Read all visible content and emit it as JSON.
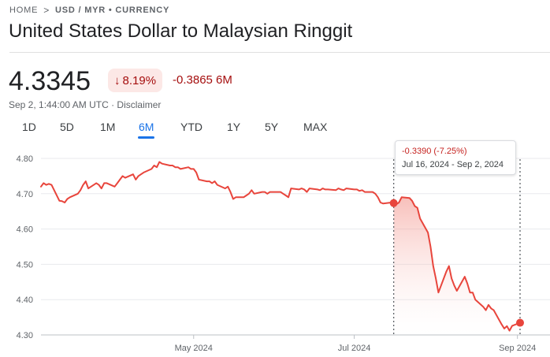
{
  "breadcrumb": {
    "home": "HOME",
    "separator": ">",
    "current": "USD / MYR • CURRENCY"
  },
  "title": "United States Dollar to Malaysian Ringgit",
  "quote": {
    "price": "4.3345",
    "change_arrow": "↓",
    "change_percent": "8.19%",
    "change_absolute": "-0.3865 6M",
    "timestamp": "Sep 2, 1:44:00 AM UTC · Disclaimer"
  },
  "tabs": [
    {
      "label": "1D"
    },
    {
      "label": "5D"
    },
    {
      "label": "1M"
    },
    {
      "label": "6M",
      "active": true
    },
    {
      "label": "YTD"
    },
    {
      "label": "1Y"
    },
    {
      "label": "5Y"
    },
    {
      "label": "MAX"
    }
  ],
  "tooltip": {
    "change": "-0.3390 (-7.25%)",
    "range": "Jul 16, 2024 - Sep 2, 2024"
  },
  "colors": {
    "line": "#e8453c",
    "negative": "#a50e0e",
    "accent": "#1a73e8",
    "fill": "#fce8e6"
  },
  "chart_data": {
    "type": "line",
    "ylim": [
      4.3,
      4.8
    ],
    "yticks": [
      "4.80",
      "4.70",
      "4.60",
      "4.50",
      "4.40",
      "4.30"
    ],
    "xticks": [
      {
        "label": "May 2024",
        "date": "2024-05-01"
      },
      {
        "label": "Jul 2024",
        "date": "2024-07-01"
      },
      {
        "label": "Sep 2024",
        "date": "2024-09-01"
      }
    ],
    "grid": true,
    "selection": {
      "start": "2024-07-16",
      "end": "2024-09-02",
      "start_value": 4.6735,
      "end_value": 4.3345
    },
    "series": [
      {
        "values": [
          [
            "2024-03-04",
            4.72
          ],
          [
            "2024-03-05",
            4.73
          ],
          [
            "2024-03-06",
            4.725
          ],
          [
            "2024-03-07",
            4.728
          ],
          [
            "2024-03-08",
            4.725
          ],
          [
            "2024-03-11",
            4.68
          ],
          [
            "2024-03-12",
            4.679
          ],
          [
            "2024-03-13",
            4.675
          ],
          [
            "2024-03-14",
            4.685
          ],
          [
            "2024-03-15",
            4.69
          ],
          [
            "2024-03-18",
            4.7
          ],
          [
            "2024-03-19",
            4.71
          ],
          [
            "2024-03-20",
            4.725
          ],
          [
            "2024-03-21",
            4.735
          ],
          [
            "2024-03-22",
            4.715
          ],
          [
            "2024-03-25",
            4.73
          ],
          [
            "2024-03-26",
            4.725
          ],
          [
            "2024-03-27",
            4.715
          ],
          [
            "2024-03-28",
            4.73
          ],
          [
            "2024-03-29",
            4.73
          ],
          [
            "2024-04-01",
            4.72
          ],
          [
            "2024-04-02",
            4.73
          ],
          [
            "2024-04-03",
            4.74
          ],
          [
            "2024-04-04",
            4.75
          ],
          [
            "2024-04-05",
            4.745
          ],
          [
            "2024-04-08",
            4.755
          ],
          [
            "2024-04-09",
            4.74
          ],
          [
            "2024-04-10",
            4.75
          ],
          [
            "2024-04-11",
            4.755
          ],
          [
            "2024-04-12",
            4.76
          ],
          [
            "2024-04-15",
            4.77
          ],
          [
            "2024-04-16",
            4.78
          ],
          [
            "2024-04-17",
            4.775
          ],
          [
            "2024-04-18",
            4.79
          ],
          [
            "2024-04-19",
            4.785
          ],
          [
            "2024-04-22",
            4.78
          ],
          [
            "2024-04-23",
            4.78
          ],
          [
            "2024-04-24",
            4.775
          ],
          [
            "2024-04-25",
            4.775
          ],
          [
            "2024-04-26",
            4.77
          ],
          [
            "2024-04-29",
            4.775
          ],
          [
            "2024-04-30",
            4.77
          ],
          [
            "2024-05-01",
            4.77
          ],
          [
            "2024-05-02",
            4.76
          ],
          [
            "2024-05-03",
            4.74
          ],
          [
            "2024-05-06",
            4.735
          ],
          [
            "2024-05-07",
            4.735
          ],
          [
            "2024-05-08",
            4.73
          ],
          [
            "2024-05-09",
            4.735
          ],
          [
            "2024-05-10",
            4.725
          ],
          [
            "2024-05-13",
            4.715
          ],
          [
            "2024-05-14",
            4.72
          ],
          [
            "2024-05-15",
            4.705
          ],
          [
            "2024-05-16",
            4.685
          ],
          [
            "2024-05-17",
            4.69
          ],
          [
            "2024-05-20",
            4.69
          ],
          [
            "2024-05-21",
            4.695
          ],
          [
            "2024-05-22",
            4.7
          ],
          [
            "2024-05-23",
            4.71
          ],
          [
            "2024-05-24",
            4.7
          ],
          [
            "2024-05-27",
            4.705
          ],
          [
            "2024-05-28",
            4.705
          ],
          [
            "2024-05-29",
            4.7
          ],
          [
            "2024-05-30",
            4.705
          ],
          [
            "2024-05-31",
            4.705
          ],
          [
            "2024-06-03",
            4.705
          ],
          [
            "2024-06-04",
            4.7
          ],
          [
            "2024-06-05",
            4.695
          ],
          [
            "2024-06-06",
            4.69
          ],
          [
            "2024-06-07",
            4.715
          ],
          [
            "2024-06-10",
            4.712
          ],
          [
            "2024-06-11",
            4.715
          ],
          [
            "2024-06-12",
            4.712
          ],
          [
            "2024-06-13",
            4.705
          ],
          [
            "2024-06-14",
            4.715
          ],
          [
            "2024-06-17",
            4.712
          ],
          [
            "2024-06-18",
            4.71
          ],
          [
            "2024-06-19",
            4.715
          ],
          [
            "2024-06-20",
            4.712
          ],
          [
            "2024-06-21",
            4.712
          ],
          [
            "2024-06-24",
            4.71
          ],
          [
            "2024-06-25",
            4.715
          ],
          [
            "2024-06-26",
            4.712
          ],
          [
            "2024-06-27",
            4.71
          ],
          [
            "2024-06-28",
            4.715
          ],
          [
            "2024-07-01",
            4.712
          ],
          [
            "2024-07-02",
            4.712
          ],
          [
            "2024-07-03",
            4.708
          ],
          [
            "2024-07-04",
            4.71
          ],
          [
            "2024-07-05",
            4.705
          ],
          [
            "2024-07-08",
            4.705
          ],
          [
            "2024-07-09",
            4.7
          ],
          [
            "2024-07-10",
            4.69
          ],
          [
            "2024-07-11",
            4.675
          ],
          [
            "2024-07-12",
            4.672
          ],
          [
            "2024-07-15",
            4.675
          ],
          [
            "2024-07-16",
            4.6735
          ],
          [
            "2024-07-17",
            4.67
          ],
          [
            "2024-07-18",
            4.675
          ],
          [
            "2024-07-19",
            4.69
          ],
          [
            "2024-07-22",
            4.688
          ],
          [
            "2024-07-23",
            4.68
          ],
          [
            "2024-07-24",
            4.665
          ],
          [
            "2024-07-25",
            4.66
          ],
          [
            "2024-07-26",
            4.63
          ],
          [
            "2024-07-29",
            4.59
          ],
          [
            "2024-07-30",
            4.55
          ],
          [
            "2024-07-31",
            4.495
          ],
          [
            "2024-08-01",
            4.46
          ],
          [
            "2024-08-02",
            4.42
          ],
          [
            "2024-08-05",
            4.48
          ],
          [
            "2024-08-06",
            4.495
          ],
          [
            "2024-08-07",
            4.46
          ],
          [
            "2024-08-08",
            4.44
          ],
          [
            "2024-08-09",
            4.425
          ],
          [
            "2024-08-12",
            4.465
          ],
          [
            "2024-08-13",
            4.445
          ],
          [
            "2024-08-14",
            4.42
          ],
          [
            "2024-08-15",
            4.42
          ],
          [
            "2024-08-16",
            4.4
          ],
          [
            "2024-08-19",
            4.38
          ],
          [
            "2024-08-20",
            4.37
          ],
          [
            "2024-08-21",
            4.385
          ],
          [
            "2024-08-22",
            4.375
          ],
          [
            "2024-08-23",
            4.37
          ],
          [
            "2024-08-26",
            4.33
          ],
          [
            "2024-08-27",
            4.318
          ],
          [
            "2024-08-28",
            4.325
          ],
          [
            "2024-08-29",
            4.312
          ],
          [
            "2024-08-30",
            4.326
          ],
          [
            "2024-09-02",
            4.3345
          ]
        ]
      }
    ]
  }
}
